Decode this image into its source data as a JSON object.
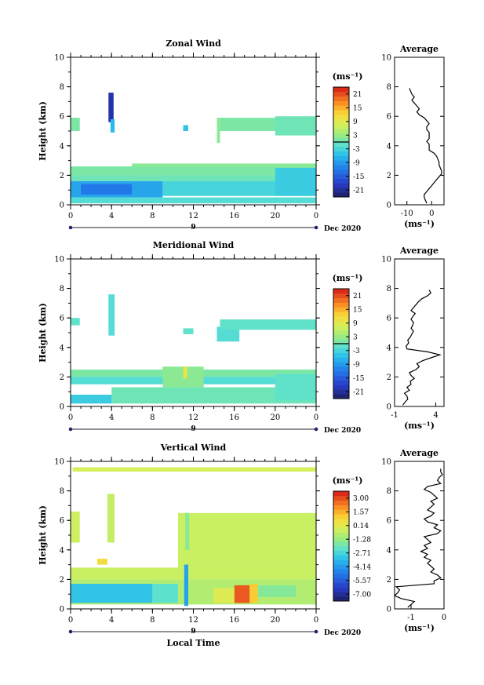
{
  "figure": {
    "xlabel": "Local Time",
    "day_label": "9",
    "date_label": "Dec 2020"
  },
  "chart_data": [
    {
      "type": "heatmap",
      "title": "Zonal Wind",
      "ylabel": "Height (km)",
      "xlim": [
        0,
        24
      ],
      "ylim": [
        0,
        10
      ],
      "x_ticks": [
        "0",
        "4",
        "8",
        "12",
        "16",
        "20",
        "0"
      ],
      "y_ticks": [
        "0",
        "2",
        "4",
        "6",
        "8",
        "10"
      ],
      "colorbar": {
        "unit": "(ms⁻¹)",
        "range": [
          -24,
          24
        ],
        "tick_labels": [
          "21",
          "15",
          "9",
          "3",
          "-3",
          "-9",
          "-15",
          "-21"
        ],
        "contour_level": 0
      },
      "blocks": [
        {
          "x0": 0.0,
          "x1": 0.9,
          "y0": 5.0,
          "y1": 5.9,
          "v": 1
        },
        {
          "x0": 3.7,
          "x1": 4.2,
          "y0": 5.6,
          "y1": 7.6,
          "v": -20
        },
        {
          "x0": 3.9,
          "x1": 4.3,
          "y0": 4.9,
          "y1": 5.8,
          "v": -6
        },
        {
          "x0": 11.0,
          "x1": 11.5,
          "y0": 5.0,
          "y1": 5.4,
          "v": -5
        },
        {
          "x0": 14.3,
          "x1": 14.6,
          "y0": 4.2,
          "y1": 5.9,
          "v": 2
        },
        {
          "x0": 14.6,
          "x1": 24.0,
          "y0": 5.0,
          "y1": 5.9,
          "v": 1
        },
        {
          "x0": 20.0,
          "x1": 24.0,
          "y0": 4.7,
          "y1": 6.0,
          "v": 0
        },
        {
          "x0": 0.0,
          "x1": 24.0,
          "y0": 2.0,
          "y1": 2.6,
          "v": 1
        },
        {
          "x0": 6.0,
          "x1": 24.0,
          "y0": 2.6,
          "y1": 2.8,
          "v": 2
        },
        {
          "x0": 0.0,
          "x1": 24.0,
          "y0": 1.6,
          "y1": 2.0,
          "v": 0
        },
        {
          "x0": 0.0,
          "x1": 9.0,
          "y0": 0.5,
          "y1": 1.6,
          "v": -8
        },
        {
          "x0": 1.0,
          "x1": 6.0,
          "y0": 0.7,
          "y1": 1.4,
          "v": -12
        },
        {
          "x0": 9.0,
          "x1": 24.0,
          "y0": 0.6,
          "y1": 1.6,
          "v": -3
        },
        {
          "x0": 0.0,
          "x1": 24.0,
          "y0": 0.1,
          "y1": 0.5,
          "v": -2
        },
        {
          "x0": 20.0,
          "x1": 24.0,
          "y0": 0.6,
          "y1": 2.5,
          "v": -4
        }
      ],
      "profile": {
        "title": "Average",
        "xlim": [
          -15,
          5
        ],
        "x_ticks": [
          "-10",
          "0"
        ],
        "x_tick_values": [
          -10,
          0
        ],
        "unit": "(ms⁻¹)",
        "y_ticks": [
          "0",
          "2",
          "4",
          "6",
          "8",
          "10"
        ],
        "height": [
          0.1,
          0.3,
          0.5,
          0.7,
          0.9,
          1.1,
          1.3,
          1.5,
          1.7,
          1.9,
          2.1,
          2.3,
          2.5,
          2.7,
          2.9,
          3.1,
          3.3,
          3.5,
          3.7,
          3.9,
          4.1,
          4.3,
          4.5,
          4.7,
          4.9,
          5.1,
          5.3,
          5.5,
          5.7,
          5.9,
          6.1,
          6.3,
          6.5,
          6.7,
          6.9,
          7.1,
          7.3,
          7.5,
          7.7,
          7.9
        ],
        "value": [
          -2,
          -2.5,
          -3,
          -3,
          -2,
          -1,
          0,
          1,
          2,
          3,
          4,
          4,
          3.5,
          3,
          3,
          2.5,
          2,
          1,
          -1,
          -1,
          -1,
          -2,
          -1,
          -1,
          -1,
          -2,
          -2,
          -1,
          -2,
          -3,
          -5,
          -6,
          -5,
          -6,
          -7,
          -8,
          -7,
          -8,
          -8.5,
          -9
        ]
      }
    },
    {
      "type": "heatmap",
      "title": "Meridional Wind",
      "ylabel": "Height (km)",
      "xlim": [
        0,
        24
      ],
      "ylim": [
        0,
        10
      ],
      "x_ticks": [
        "0",
        "4",
        "8",
        "12",
        "16",
        "20",
        "0"
      ],
      "y_ticks": [
        "0",
        "2",
        "4",
        "6",
        "8",
        "10"
      ],
      "colorbar": {
        "unit": "(ms⁻¹)",
        "range": [
          -24,
          24
        ],
        "tick_labels": [
          "21",
          "15",
          "9",
          "3",
          "-3",
          "-9",
          "-15",
          "-21"
        ],
        "contour_level": 0
      },
      "blocks": [
        {
          "x0": 0.0,
          "x1": 0.9,
          "y0": 5.5,
          "y1": 6.0,
          "v": -1
        },
        {
          "x0": 3.7,
          "x1": 4.3,
          "y0": 4.8,
          "y1": 7.6,
          "v": -2
        },
        {
          "x0": 11.0,
          "x1": 12.0,
          "y0": 4.9,
          "y1": 5.3,
          "v": -1
        },
        {
          "x0": 14.3,
          "x1": 16.5,
          "y0": 4.4,
          "y1": 5.4,
          "v": -2
        },
        {
          "x0": 14.6,
          "x1": 24.0,
          "y0": 5.2,
          "y1": 5.9,
          "v": -1
        },
        {
          "x0": 0.0,
          "x1": 24.0,
          "y0": 2.0,
          "y1": 2.5,
          "v": 1
        },
        {
          "x0": 0.0,
          "x1": 24.0,
          "y0": 1.5,
          "y1": 2.0,
          "v": -2
        },
        {
          "x0": 9.0,
          "x1": 13.0,
          "y0": 1.3,
          "y1": 2.7,
          "v": 2
        },
        {
          "x0": 11.0,
          "x1": 11.4,
          "y0": 1.9,
          "y1": 2.7,
          "v": 10
        },
        {
          "x0": 4.0,
          "x1": 24.0,
          "y0": 0.2,
          "y1": 1.3,
          "v": 0
        },
        {
          "x0": 0.0,
          "x1": 4.0,
          "y0": 0.2,
          "y1": 0.8,
          "v": -4
        },
        {
          "x0": 20.0,
          "x1": 24.0,
          "y0": 0.4,
          "y1": 2.2,
          "v": -1
        }
      ],
      "profile": {
        "title": "Average",
        "xlim": [
          -1,
          5
        ],
        "x_ticks": [
          "-1",
          "4"
        ],
        "x_tick_values": [
          -1,
          4
        ],
        "unit": "(ms⁻¹)",
        "y_ticks": [
          "0",
          "2",
          "4",
          "6",
          "8",
          "10"
        ],
        "height": [
          0.1,
          0.3,
          0.5,
          0.7,
          0.9,
          1.1,
          1.3,
          1.5,
          1.7,
          1.9,
          2.1,
          2.3,
          2.5,
          2.7,
          2.9,
          3.1,
          3.3,
          3.5,
          3.7,
          3.9,
          4.1,
          4.3,
          4.5,
          4.7,
          4.9,
          5.1,
          5.3,
          5.5,
          5.7,
          5.9,
          6.1,
          6.3,
          6.5,
          6.7,
          6.9,
          7.1,
          7.3,
          7.5,
          7.7,
          7.9
        ],
        "value": [
          0.0,
          0.3,
          0.6,
          0.5,
          0.2,
          0.8,
          0.5,
          1.0,
          0.9,
          1.4,
          1.0,
          0.8,
          1.6,
          2.0,
          1.7,
          2.4,
          3.4,
          4.5,
          3.0,
          0.5,
          0.4,
          0.7,
          0.6,
          0.9,
          1.1,
          1.3,
          1.0,
          1.2,
          1.3,
          1.0,
          1.2,
          1.5,
          1.0,
          1.3,
          1.6,
          1.9,
          2.3,
          3.0,
          3.4,
          3.2
        ]
      }
    },
    {
      "type": "heatmap",
      "title": "Vertical Wind",
      "ylabel": "Height (km)",
      "xlabel": "Local Time",
      "xlim": [
        0,
        24
      ],
      "ylim": [
        0,
        10
      ],
      "x_ticks": [
        "0",
        "4",
        "8",
        "12",
        "16",
        "20",
        "0"
      ],
      "y_ticks": [
        "0",
        "2",
        "4",
        "6",
        "8",
        "10"
      ],
      "colorbar": {
        "unit": "(ms⁻¹)",
        "range": [
          -7.8,
          3.8
        ],
        "tick_labels": [
          "3.00",
          "1.57",
          "0.14",
          "-1.28",
          "-2.71",
          "-4.14",
          "-5.57",
          "-7.00"
        ]
      },
      "blocks": [
        {
          "x0": 0.0,
          "x1": 0.9,
          "y0": 4.5,
          "y1": 6.6,
          "v": -0.3
        },
        {
          "x0": 3.6,
          "x1": 4.3,
          "y0": 4.5,
          "y1": 7.8,
          "v": -0.5
        },
        {
          "x0": 10.5,
          "x1": 24.0,
          "y0": 2.8,
          "y1": 6.5,
          "v": -0.4
        },
        {
          "x0": 11.2,
          "x1": 11.6,
          "y0": 4.0,
          "y1": 6.5,
          "v": -1.5
        },
        {
          "x0": 0.0,
          "x1": 24.0,
          "y0": 2.0,
          "y1": 2.8,
          "v": -0.4
        },
        {
          "x0": 2.6,
          "x1": 3.6,
          "y0": 3.0,
          "y1": 3.4,
          "v": 0.8
        },
        {
          "x0": 0.0,
          "x1": 24.0,
          "y0": 0.3,
          "y1": 2.0,
          "v": -0.8
        },
        {
          "x0": 0.0,
          "x1": 8.0,
          "y0": 0.4,
          "y1": 1.7,
          "v": -3.2
        },
        {
          "x0": 8.0,
          "x1": 10.5,
          "y0": 0.4,
          "y1": 1.7,
          "v": -2.3
        },
        {
          "x0": 11.1,
          "x1": 11.5,
          "y0": 0.2,
          "y1": 3.0,
          "v": -4.0
        },
        {
          "x0": 16.0,
          "x1": 17.5,
          "y0": 0.4,
          "y1": 1.6,
          "v": 2.9
        },
        {
          "x0": 17.5,
          "x1": 18.3,
          "y0": 0.4,
          "y1": 1.7,
          "v": 1.2
        },
        {
          "x0": 14.0,
          "x1": 16.0,
          "y0": 0.4,
          "y1": 1.4,
          "v": 0.1
        },
        {
          "x0": 18.3,
          "x1": 22.0,
          "y0": 0.8,
          "y1": 1.6,
          "v": -1.6
        },
        {
          "x0": 0.2,
          "x1": 24.0,
          "y0": 9.3,
          "y1": 9.6,
          "v": -0.2
        }
      ],
      "profile": {
        "title": "Average",
        "xlim": [
          -1.5,
          0
        ],
        "x_ticks": [
          "-1",
          "0"
        ],
        "x_tick_values": [
          -1,
          0
        ],
        "unit": "(ms⁻¹)",
        "y_ticks": [
          "0",
          "2",
          "4",
          "6",
          "8",
          "10"
        ],
        "height": [
          0.1,
          0.3,
          0.5,
          0.7,
          0.9,
          1.1,
          1.3,
          1.5,
          1.7,
          1.9,
          2.1,
          2.3,
          2.5,
          2.7,
          2.9,
          3.1,
          3.3,
          3.5,
          3.7,
          3.9,
          4.1,
          4.3,
          4.5,
          4.7,
          4.9,
          5.1,
          5.3,
          5.5,
          5.7,
          5.9,
          6.1,
          6.3,
          6.5,
          6.7,
          6.9,
          7.1,
          7.3,
          7.5,
          7.7,
          7.9,
          8.1,
          8.3,
          8.5,
          8.7,
          8.9,
          9.1,
          9.3,
          9.5
        ],
        "value": [
          -1.1,
          -1.0,
          -0.9,
          -1.3,
          -1.5,
          -1.4,
          -1.35,
          -1.45,
          -0.3,
          -0.3,
          -0.1,
          -0.2,
          -0.4,
          -0.3,
          -0.4,
          -0.5,
          -0.4,
          -0.6,
          -0.5,
          -0.7,
          -0.5,
          -0.6,
          -0.4,
          -0.5,
          -0.6,
          -0.2,
          -0.1,
          -0.3,
          -0.2,
          -0.5,
          -0.6,
          -0.4,
          -0.3,
          -0.5,
          -0.4,
          -0.3,
          -0.4,
          -0.2,
          -0.3,
          -0.4,
          -0.6,
          -0.5,
          -0.1,
          -0.2,
          -0.15,
          -0.05,
          -0.1,
          -0.1
        ]
      }
    }
  ]
}
